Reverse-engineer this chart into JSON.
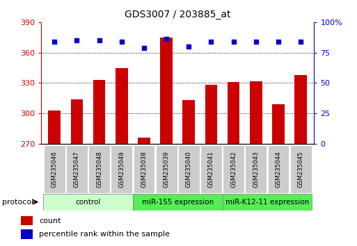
{
  "title": "GDS3007 / 203885_at",
  "samples": [
    "GSM235046",
    "GSM235047",
    "GSM235048",
    "GSM235049",
    "GSM235038",
    "GSM235039",
    "GSM235040",
    "GSM235041",
    "GSM235042",
    "GSM235043",
    "GSM235044",
    "GSM235045"
  ],
  "counts": [
    303,
    314,
    333,
    345,
    276,
    375,
    313,
    328,
    331,
    332,
    309,
    338
  ],
  "percentile_ranks": [
    84,
    85,
    85,
    84,
    79,
    86,
    80,
    84,
    84,
    84,
    84,
    84
  ],
  "groups": [
    {
      "label": "control",
      "start": 0,
      "end": 4,
      "color": "#ccffcc"
    },
    {
      "label": "miR-155 expression",
      "start": 4,
      "end": 8,
      "color": "#55ee55"
    },
    {
      "label": "miR-K12-11 expression",
      "start": 8,
      "end": 12,
      "color": "#55ee55"
    }
  ],
  "ylim_left": [
    270,
    390
  ],
  "ylim_right": [
    0,
    100
  ],
  "yticks_left": [
    270,
    300,
    330,
    360,
    390
  ],
  "yticks_right": [
    0,
    25,
    50,
    75,
    100
  ],
  "bar_color": "#cc0000",
  "dot_color": "#0000cc",
  "bar_width": 0.55,
  "bg_color": "#ffffff",
  "plot_bg": "#ffffff",
  "legend_items": [
    {
      "label": "count",
      "color": "#cc0000"
    },
    {
      "label": "percentile rank within the sample",
      "color": "#0000cc"
    }
  ]
}
